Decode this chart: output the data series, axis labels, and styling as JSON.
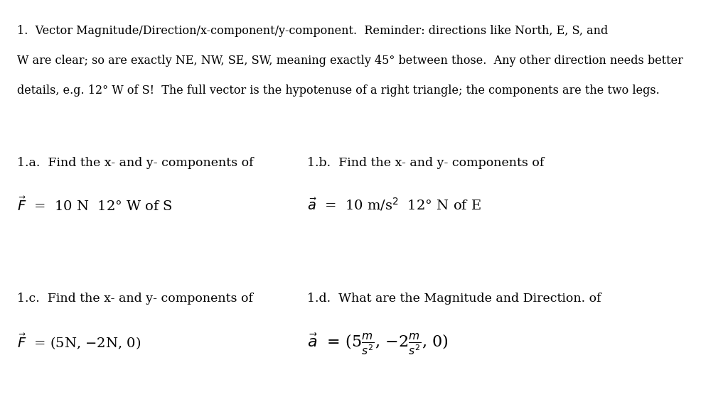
{
  "bg_color": "#ffffff",
  "text_color": "#000000",
  "font_family": "serif",
  "title_bold": true,
  "header_text_line1": "1.  Vector Magnitude/Direction/x-component/y-component.  Reminder: directions like North, E, S, and",
  "header_text_line2": "W are clear; so are exactly NE, NW, SE, SW, meaning exactly 45° between those.  Any other direction needs better",
  "header_text_line3": "details, e.g. 12° W of S!  The full vector is the hypotenuse of a right triangle; the components are the two legs.",
  "section_a_label": "1.a.  Find the x- and y- components of",
  "section_b_label": "1.b.  Find the x- and y- components of",
  "section_c_label": "1.c.  Find the x- and y- components of",
  "section_d_label": "1.d.  What are the Magnitude and Direction. of",
  "fig_width": 10.24,
  "fig_height": 5.76,
  "dpi": 100
}
